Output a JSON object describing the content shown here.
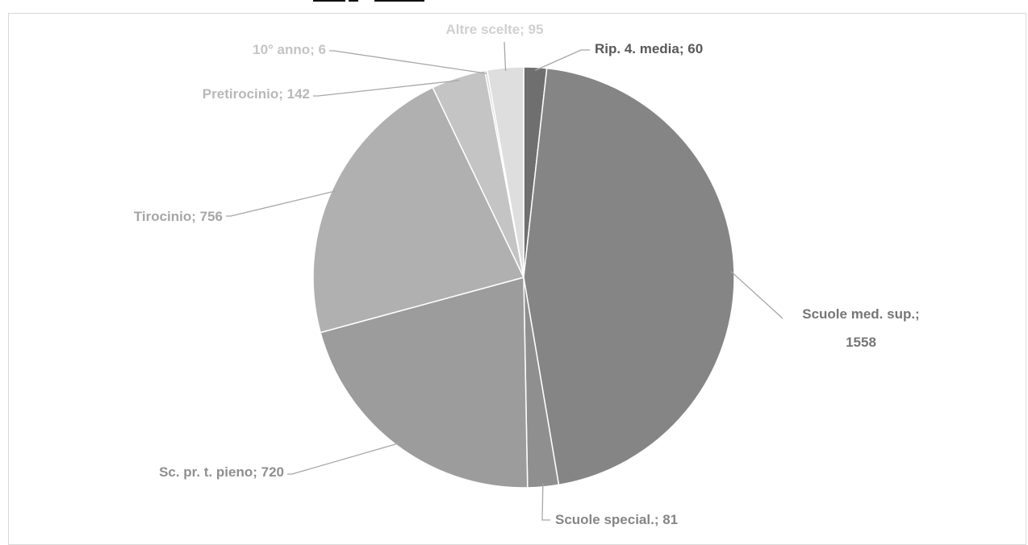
{
  "chart_data": {
    "type": "pie",
    "title": "",
    "slices": [
      {
        "label": "Rip. 4. media",
        "value": 60,
        "display": "Rip. 4. media; 60",
        "color": "#6f6f6f",
        "text_color": "#595959"
      },
      {
        "label": "Scuole med. sup.",
        "value": 1558,
        "display_lines": [
          "Scuole med. sup.;",
          "1558"
        ],
        "color": "#858585",
        "text_color": "#767676"
      },
      {
        "label": "Scuole special.",
        "value": 81,
        "display": "Scuole special.; 81",
        "color": "#8f8f8f",
        "text_color": "#868686"
      },
      {
        "label": "Sc. pr. t. pieno",
        "value": 720,
        "display": "Sc. pr. t. pieno; 720",
        "color": "#9c9c9c",
        "text_color": "#8f8f8f"
      },
      {
        "label": "Tirocinio",
        "value": 756,
        "display": "Tirocinio; 756",
        "color": "#b0b0b0",
        "text_color": "#a6a6a6"
      },
      {
        "label": "Pretirocinio",
        "value": 142,
        "display": "Pretirocinio; 142",
        "color": "#c4c4c4",
        "text_color": "#b8b8b8"
      },
      {
        "label": "10° anno",
        "value": 6,
        "display": "10° anno; 6",
        "color": "#d3d3d3",
        "text_color": "#c4c4c4"
      },
      {
        "label": "Altre scelte",
        "value": 95,
        "display": "Altre scelte; 95",
        "color": "#dedede",
        "text_color": "#d0d0d0"
      }
    ],
    "start_angle_deg": 0,
    "direction": "clockwise",
    "legend": "none",
    "data_labels": "outside with leader lines"
  }
}
